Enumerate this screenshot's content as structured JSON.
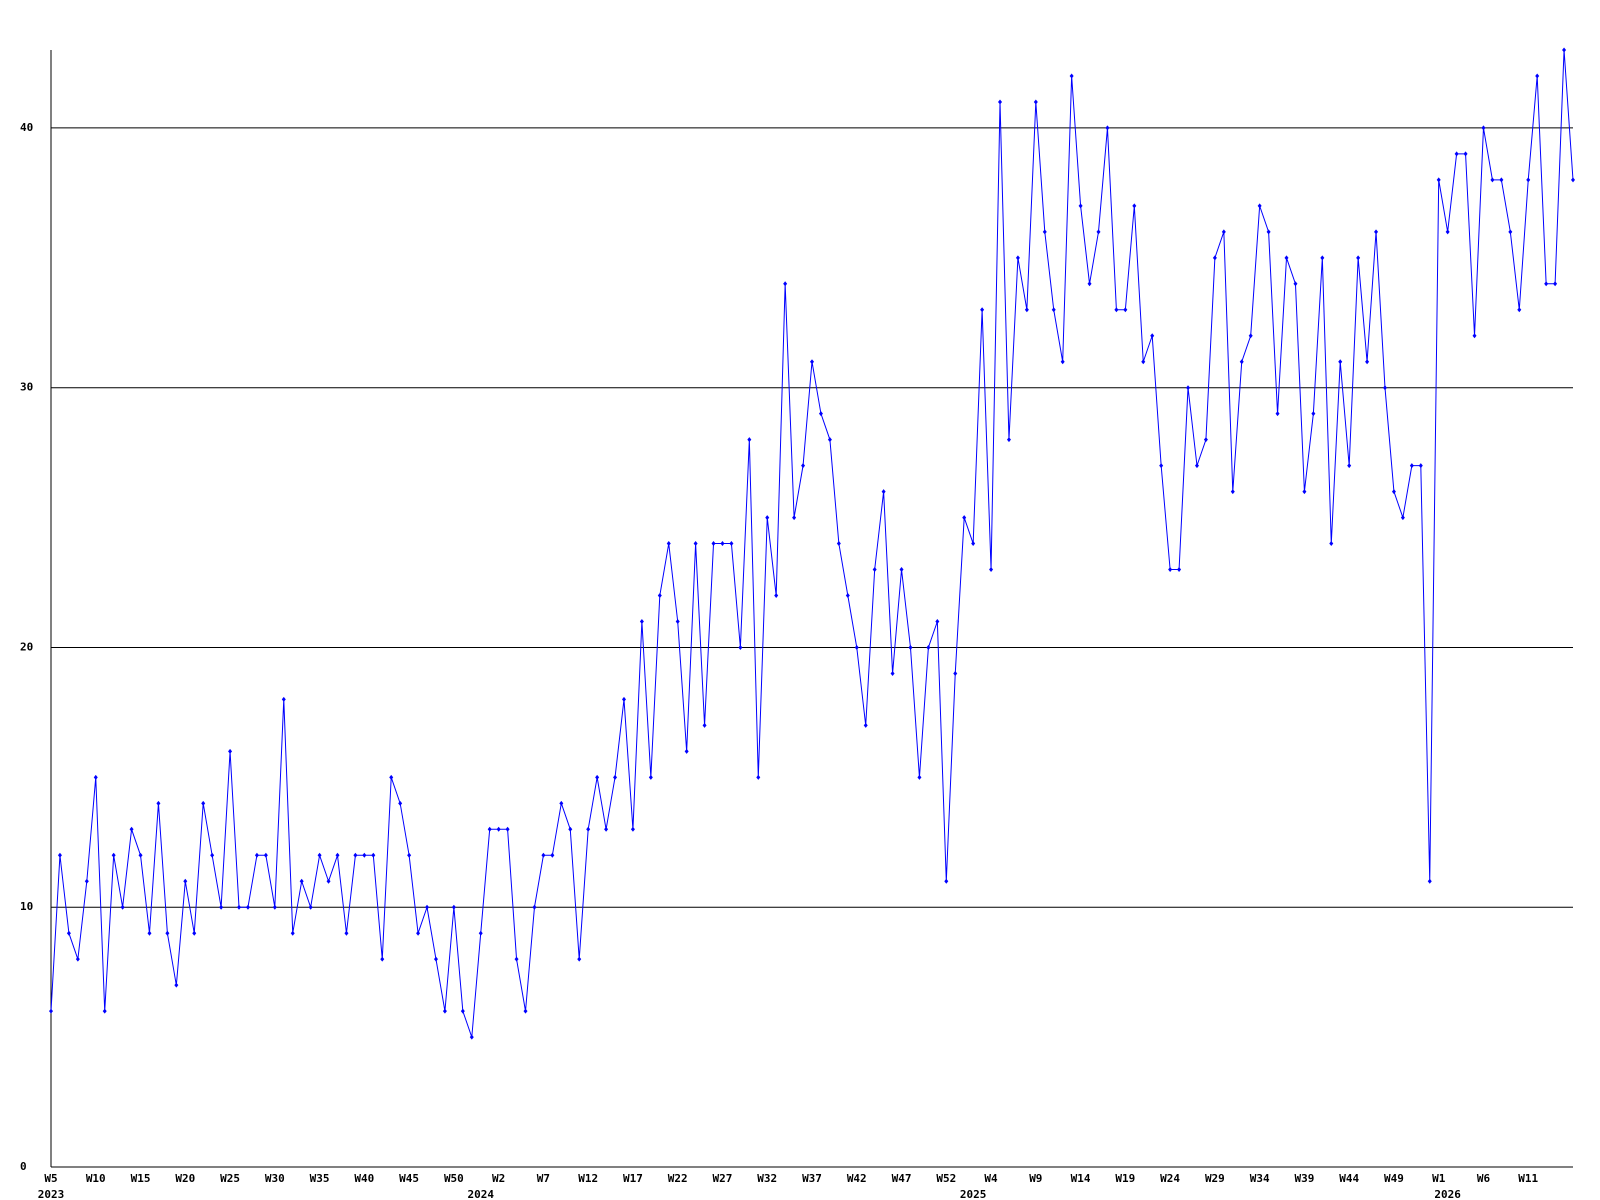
{
  "chart_data": {
    "type": "line",
    "categories": [
      "W5",
      null,
      null,
      null,
      null,
      "W10",
      null,
      null,
      null,
      null,
      "W15",
      null,
      null,
      null,
      null,
      "W20",
      null,
      null,
      null,
      null,
      "W25",
      null,
      null,
      null,
      null,
      "W30",
      null,
      null,
      null,
      null,
      "W35",
      null,
      null,
      null,
      null,
      "W40",
      null,
      null,
      null,
      null,
      "W45",
      null,
      null,
      null,
      null,
      "W50",
      null,
      null,
      null,
      null,
      "W2",
      null,
      null,
      null,
      null,
      "W7",
      null,
      null,
      null,
      null,
      "W12",
      null,
      null,
      null,
      null,
      "W17",
      null,
      null,
      null,
      null,
      "W22",
      null,
      null,
      null,
      null,
      "W27",
      null,
      null,
      null,
      null,
      "W32",
      null,
      null,
      null,
      null,
      "W37",
      null,
      null,
      null,
      null,
      "W42",
      null,
      null,
      null,
      null,
      "W47",
      null,
      null,
      null,
      null,
      "W52",
      null,
      null,
      null,
      null,
      "W4",
      null,
      null,
      null,
      null,
      "W9",
      null,
      null,
      null,
      null,
      "W14",
      null,
      null,
      null,
      null,
      "W19",
      null,
      null,
      null,
      null,
      "W24",
      null,
      null,
      null,
      null,
      "W29",
      null,
      null,
      null,
      null,
      "W34",
      null,
      null,
      null,
      null,
      "W39",
      null,
      null,
      null,
      null,
      "W44",
      null,
      null,
      null,
      null,
      "W49",
      null,
      null,
      null,
      null,
      "W1",
      null,
      null,
      null,
      null,
      "W6",
      null,
      null,
      null,
      null,
      "W11",
      null,
      null,
      null,
      null,
      null
    ],
    "year_labels": [
      "2023",
      null,
      null,
      null,
      null,
      null,
      null,
      null,
      null,
      null,
      null,
      null,
      null,
      null,
      null,
      null,
      null,
      null,
      null,
      null,
      null,
      null,
      null,
      null,
      null,
      null,
      null,
      null,
      null,
      null,
      null,
      null,
      null,
      null,
      null,
      null,
      null,
      null,
      null,
      null,
      null,
      null,
      null,
      null,
      null,
      null,
      null,
      null,
      "2024",
      null,
      null,
      null,
      null,
      null,
      null,
      null,
      null,
      null,
      null,
      null,
      null,
      null,
      null,
      null,
      null,
      null,
      null,
      null,
      null,
      null,
      null,
      null,
      null,
      null,
      null,
      null,
      null,
      null,
      null,
      null,
      null,
      null,
      null,
      null,
      null,
      null,
      null,
      null,
      null,
      null,
      null,
      null,
      null,
      null,
      null,
      null,
      null,
      null,
      null,
      null,
      null,
      null,
      null,
      "2025",
      null,
      null,
      null,
      null,
      null,
      null,
      null,
      null,
      null,
      null,
      null,
      null,
      null,
      null,
      null,
      null,
      null,
      null,
      null,
      null,
      null,
      null,
      null,
      null,
      null,
      null,
      null,
      null,
      null,
      null,
      null,
      null,
      null,
      null,
      null,
      null,
      null,
      null,
      null,
      null,
      null,
      null,
      null,
      null,
      null,
      null,
      null,
      null,
      null,
      null,
      null,
      null,
      "2026",
      null,
      null,
      null,
      null,
      null,
      null,
      null,
      null,
      null,
      null,
      null,
      null,
      null,
      null,
      null,
      null
    ],
    "values": [
      6,
      12,
      9,
      8,
      11,
      15,
      6,
      12,
      10,
      13,
      12,
      9,
      14,
      9,
      7,
      11,
      9,
      14,
      12,
      10,
      16,
      10,
      10,
      12,
      12,
      10,
      18,
      9,
      11,
      10,
      12,
      11,
      12,
      9,
      12,
      12,
      12,
      8,
      15,
      14,
      12,
      9,
      10,
      8,
      6,
      10,
      6,
      5,
      9,
      13,
      13,
      13,
      8,
      6,
      10,
      12,
      12,
      14,
      13,
      8,
      13,
      15,
      13,
      15,
      18,
      13,
      21,
      15,
      22,
      24,
      21,
      16,
      24,
      17,
      24,
      24,
      24,
      20,
      28,
      15,
      25,
      22,
      34,
      25,
      27,
      31,
      29,
      28,
      24,
      22,
      20,
      17,
      23,
      26,
      19,
      23,
      20,
      15,
      20,
      21,
      11,
      19,
      25,
      24,
      33,
      23,
      41,
      28,
      35,
      33,
      41,
      36,
      33,
      31,
      42,
      37,
      34,
      36,
      40,
      33,
      33,
      37,
      31,
      32,
      27,
      23,
      23,
      30,
      27,
      28,
      35,
      36,
      26,
      31,
      32,
      37,
      36,
      29,
      35,
      34,
      26,
      29,
      35,
      24,
      31,
      27,
      35,
      31,
      36,
      30,
      26,
      25,
      27,
      27,
      11,
      38,
      36,
      39,
      39,
      32,
      40,
      38,
      38,
      36,
      33,
      38,
      42,
      34,
      34,
      43,
      38
    ],
    "color": "#0000ff",
    "ylim": [
      0,
      43
    ],
    "yticks": [
      0,
      10,
      20,
      30,
      40
    ],
    "grid": true
  }
}
